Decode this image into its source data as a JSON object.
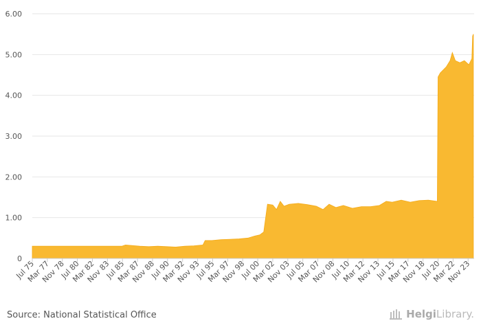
{
  "chart_data": {
    "type": "area",
    "title": "",
    "xlabel": "",
    "ylabel": "",
    "ylim": [
      0,
      6
    ],
    "yticks": [
      "0",
      "1.00",
      "2.00",
      "3.00",
      "4.00",
      "5.00",
      "6.00"
    ],
    "xticks": [
      "Jul 75",
      "Mar 77",
      "Nov 78",
      "Jul 80",
      "Mar 82",
      "Nov 83",
      "Jul 85",
      "Mar 87",
      "Nov 88",
      "Jul 90",
      "Mar 92",
      "Nov 93",
      "Jul 95",
      "Mar 97",
      "Nov 98",
      "Jul 00",
      "Mar 02",
      "Nov 03",
      "Jul 05",
      "Mar 07",
      "Nov 08",
      "Jul 10",
      "Mar 12",
      "Nov 13",
      "Jul 15",
      "Mar 17",
      "Nov 18",
      "Jul 20",
      "Mar 22",
      "Nov 23"
    ],
    "grid": true,
    "color": "#f9b931",
    "points": [
      [
        "1975-07",
        0.3
      ],
      [
        "1980-01",
        0.3
      ],
      [
        "1985-06",
        0.3
      ],
      [
        "1985-11",
        0.33
      ],
      [
        "1986-06",
        0.32
      ],
      [
        "1987-06",
        0.3
      ],
      [
        "1988-06",
        0.29
      ],
      [
        "1989-06",
        0.3
      ],
      [
        "1990-06",
        0.29
      ],
      [
        "1991-06",
        0.28
      ],
      [
        "1992-06",
        0.3
      ],
      [
        "1993-06",
        0.31
      ],
      [
        "1994-06",
        0.33
      ],
      [
        "1994-09",
        0.44
      ],
      [
        "1995-06",
        0.44
      ],
      [
        "1996-06",
        0.46
      ],
      [
        "1997-06",
        0.47
      ],
      [
        "1998-06",
        0.48
      ],
      [
        "1999-06",
        0.5
      ],
      [
        "2000-03",
        0.55
      ],
      [
        "2000-10",
        0.58
      ],
      [
        "2001-03",
        0.65
      ],
      [
        "2001-08",
        1.33
      ],
      [
        "2002-03",
        1.31
      ],
      [
        "2002-08",
        1.2
      ],
      [
        "2003-01",
        1.4
      ],
      [
        "2003-06",
        1.28
      ],
      [
        "2004-01",
        1.33
      ],
      [
        "2005-01",
        1.35
      ],
      [
        "2006-01",
        1.32
      ],
      [
        "2007-01",
        1.28
      ],
      [
        "2007-10",
        1.2
      ],
      [
        "2008-06",
        1.33
      ],
      [
        "2009-03",
        1.25
      ],
      [
        "2010-01",
        1.3
      ],
      [
        "2011-01",
        1.23
      ],
      [
        "2012-01",
        1.27
      ],
      [
        "2013-01",
        1.27
      ],
      [
        "2014-01",
        1.3
      ],
      [
        "2014-10",
        1.4
      ],
      [
        "2015-06",
        1.38
      ],
      [
        "2016-06",
        1.43
      ],
      [
        "2017-06",
        1.38
      ],
      [
        "2018-06",
        1.42
      ],
      [
        "2019-06",
        1.43
      ],
      [
        "2020-06",
        1.4
      ],
      [
        "2020-07",
        4.45
      ],
      [
        "2020-10",
        4.55
      ],
      [
        "2021-06",
        4.7
      ],
      [
        "2021-11",
        4.85
      ],
      [
        "2022-02",
        5.05
      ],
      [
        "2022-06",
        4.85
      ],
      [
        "2022-12",
        4.8
      ],
      [
        "2023-06",
        4.85
      ],
      [
        "2023-12",
        4.75
      ],
      [
        "2024-04",
        4.9
      ],
      [
        "2024-05",
        5.45
      ],
      [
        "2024-06",
        5.5
      ]
    ]
  },
  "footer": {
    "source": "Source: National Statistical Office",
    "brand_first": "Helgi",
    "brand_second": "Library."
  }
}
